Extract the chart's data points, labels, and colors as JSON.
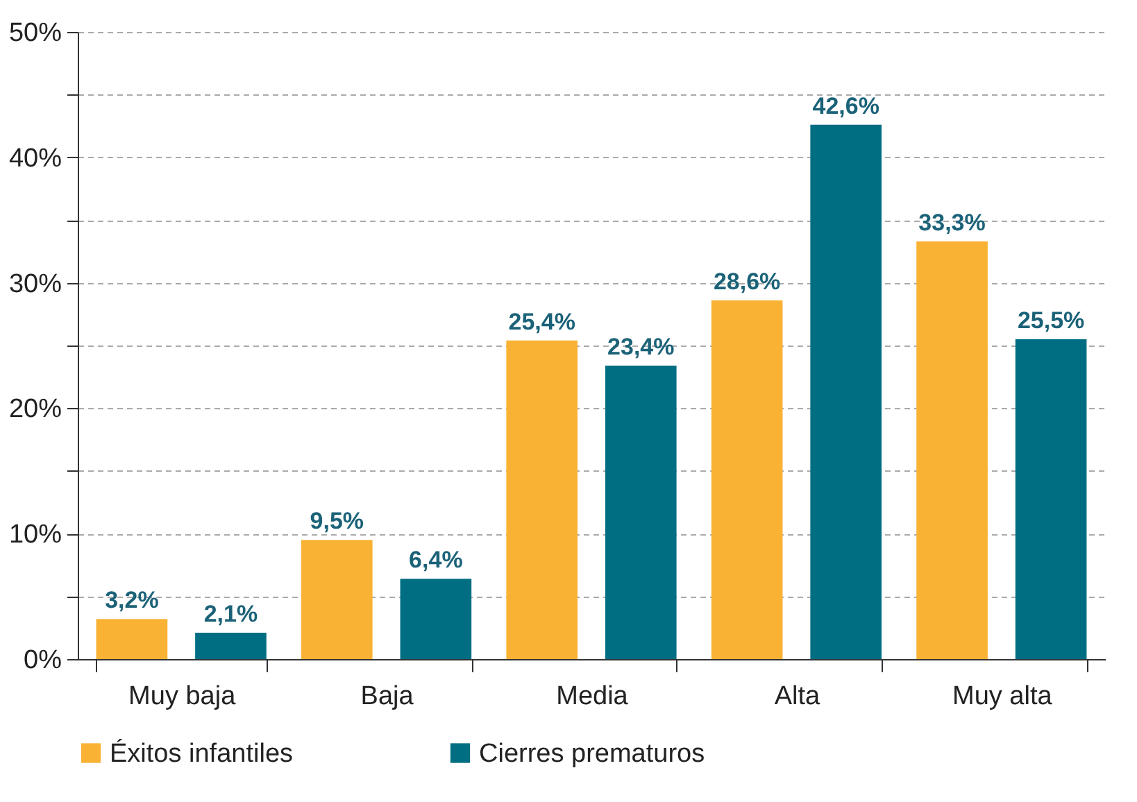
{
  "chart_data": {
    "type": "bar",
    "categories": [
      "Muy baja",
      "Baja",
      "Media",
      "Alta",
      "Muy alta"
    ],
    "series": [
      {
        "name": "Éxitos infantiles",
        "color": "#f9b233",
        "values": [
          3.2,
          9.5,
          25.4,
          28.6,
          33.3
        ],
        "value_labels": [
          "3,2%",
          "9,5%",
          "25,4%",
          "28,6%",
          "33,3%"
        ]
      },
      {
        "name": "Cierres prematuros",
        "color": "#006e82",
        "values": [
          2.1,
          6.4,
          23.4,
          42.6,
          25.5
        ],
        "value_labels": [
          "2,1%",
          "6,4%",
          "23,4%",
          "42,6%",
          "25,5%"
        ]
      }
    ],
    "ylim": [
      0,
      50
    ],
    "yticks": [
      {
        "value": 0,
        "label": "0%"
      },
      {
        "value": 5,
        "label": null
      },
      {
        "value": 10,
        "label": "10%"
      },
      {
        "value": 15,
        "label": null
      },
      {
        "value": 20,
        "label": "20%"
      },
      {
        "value": 25,
        "label": null
      },
      {
        "value": 30,
        "label": "30%"
      },
      {
        "value": 35,
        "label": null
      },
      {
        "value": 40,
        "label": "40%"
      },
      {
        "value": 45,
        "label": null
      },
      {
        "value": 50,
        "label": "50%"
      }
    ],
    "grid": true,
    "legend": "bottom"
  }
}
